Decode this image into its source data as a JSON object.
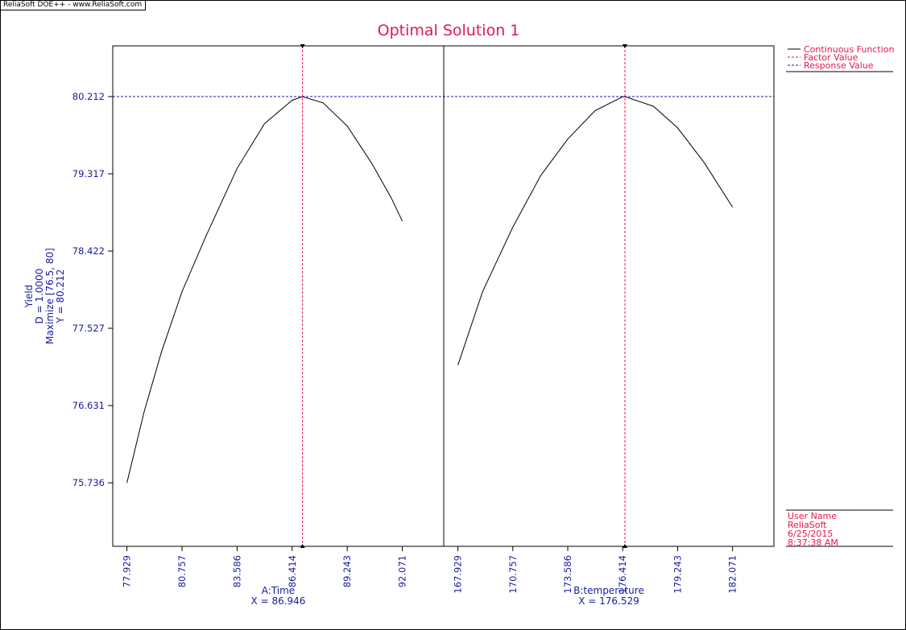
{
  "app": {
    "header": "ReliaSoft DOE++ - www.ReliaSoft.com"
  },
  "colors": {
    "curve": "#000000",
    "factor": "#e8174e",
    "response": "#1a1aa0",
    "text": "#1a1aa0",
    "title": "#e8174e"
  },
  "chart_data": {
    "type": "line",
    "title": "Optimal Solution 1",
    "ylabel_lines": [
      "Yield",
      "D = 1.0000",
      "Maximize [76.5, 80]",
      "Y = 80.212"
    ],
    "yticks": [
      "75.736",
      "76.631",
      "77.527",
      "78.422",
      "79.317",
      "80.212"
    ],
    "ylim": [
      75.0,
      80.8
    ],
    "response_value": 80.212,
    "panels": [
      {
        "factor": "A:Time",
        "xlabel": "A:Time",
        "xvalue_label": "X = 86.946",
        "factor_value": 86.946,
        "xlim": [
          77.2,
          94.2
        ],
        "xticks": [
          "77.929",
          "80.757",
          "83.586",
          "86.414",
          "89.243",
          "92.071"
        ],
        "x": [
          77.929,
          78.8,
          79.7,
          80.757,
          82.0,
          83.586,
          85.0,
          86.414,
          86.946,
          88.0,
          89.243,
          90.5,
          91.5,
          92.071
        ],
        "y": [
          75.736,
          76.55,
          77.25,
          77.95,
          78.6,
          79.38,
          79.9,
          80.17,
          80.212,
          80.14,
          79.87,
          79.44,
          79.04,
          78.77
        ]
      },
      {
        "factor": "B:temperature",
        "xlabel": "B:temperature",
        "xvalue_label": "X = 176.529",
        "factor_value": 176.529,
        "xlim": [
          167.2,
          184.2
        ],
        "xticks": [
          "167.929",
          "170.757",
          "173.586",
          "176.414",
          "179.243",
          "182.071"
        ],
        "x": [
          167.929,
          169.2,
          170.757,
          172.2,
          173.586,
          175.0,
          176.414,
          176.529,
          178.0,
          179.243,
          180.6,
          182.071
        ],
        "y": [
          77.1,
          77.95,
          78.7,
          79.3,
          79.72,
          80.05,
          80.21,
          80.212,
          80.1,
          79.85,
          79.45,
          78.93
        ]
      }
    ],
    "legend": [
      "Continuous Function",
      "Factor Value",
      "Response Value"
    ]
  },
  "meta": {
    "user_label": "User Name",
    "company": "ReliaSoft",
    "date": "6/25/2015",
    "time": "8:37:38 AM"
  }
}
